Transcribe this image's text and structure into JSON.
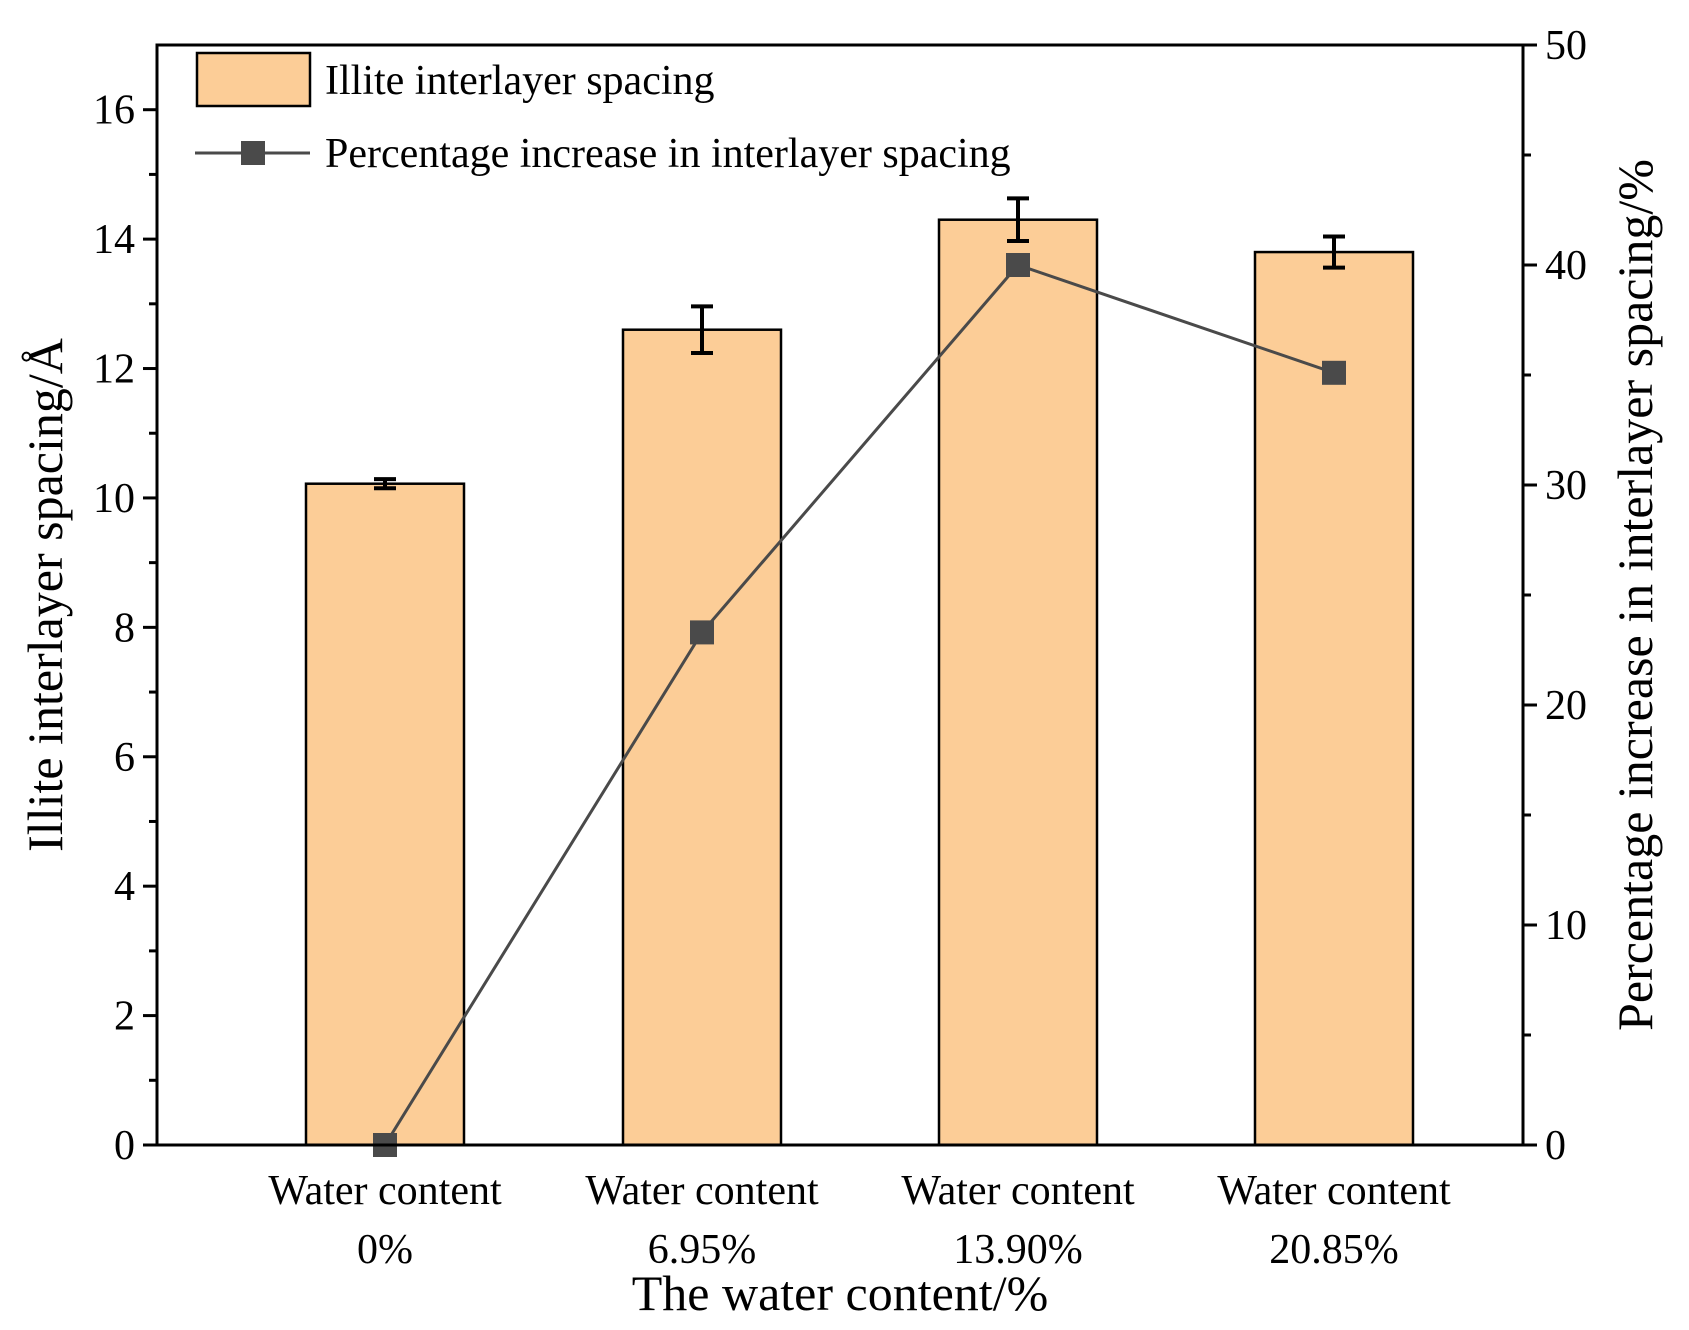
{
  "chart_data": {
    "type": "bar",
    "title": "",
    "xlabel": "The water content/%",
    "ylabel": "Illite interlayer spacing/Å",
    "y2label": "Percentage increase in interlayer spacing/%",
    "categories": [
      {
        "line1": "Water content",
        "line2": "0%"
      },
      {
        "line1": "Water content",
        "line2": "6.95%"
      },
      {
        "line1": "Water content",
        "line2": "13.90%"
      },
      {
        "line1": "Water content",
        "line2": "20.85%"
      }
    ],
    "ylim": [
      0,
      17
    ],
    "y2lim": [
      0,
      50
    ],
    "yticks": [
      "0",
      "2",
      "4",
      "6",
      "8",
      "10",
      "12",
      "14",
      "16"
    ],
    "y2ticks": [
      "0",
      "10",
      "20",
      "30",
      "40",
      "50"
    ],
    "legend_position": "top-left",
    "series": [
      {
        "name": "Illite interlayer spacing",
        "kind": "bar",
        "axis": "left",
        "color": "#FCCD97",
        "values": [
          10.22,
          12.6,
          14.3,
          13.8
        ],
        "errors": [
          0.07,
          0.36,
          0.33,
          0.24
        ]
      },
      {
        "name": "Percentage increase in interlayer spacing",
        "kind": "line",
        "axis": "right",
        "color": "#4A4A4A",
        "values": [
          0,
          23.3,
          40.0,
          35.1
        ]
      }
    ]
  }
}
